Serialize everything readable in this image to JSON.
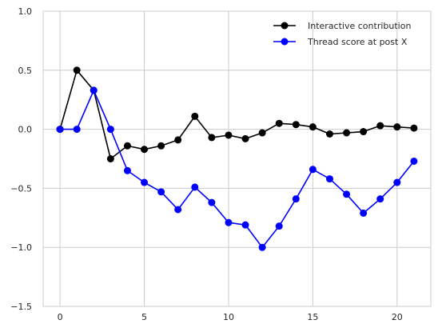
{
  "chart_data": {
    "type": "line",
    "title": "",
    "xlabel": "",
    "ylabel": "",
    "xlim": [
      -1,
      22
    ],
    "ylim": [
      -1.5,
      1.0
    ],
    "xticks": [
      0,
      5,
      10,
      15,
      20
    ],
    "xtick_labels": [
      "0",
      "5",
      "10",
      "15",
      "20"
    ],
    "yticks": [
      -1.5,
      -1.0,
      -0.5,
      0.0,
      0.5,
      1.0
    ],
    "ytick_labels": [
      "−1.5",
      "−1.0",
      "−0.5",
      "0.0",
      "0.5",
      "1.0"
    ],
    "grid": true,
    "legend_position": "top-right",
    "x": [
      0,
      1,
      2,
      3,
      4,
      5,
      6,
      7,
      8,
      9,
      10,
      11,
      12,
      13,
      14,
      15,
      16,
      17,
      18,
      19,
      20,
      21
    ],
    "series": [
      {
        "name": "Interactive contribution",
        "color": "#000000",
        "marker": "circle",
        "values": [
          0.0,
          0.5,
          0.33,
          -0.25,
          -0.14,
          -0.17,
          -0.14,
          -0.09,
          0.11,
          -0.07,
          -0.05,
          -0.08,
          -0.03,
          0.05,
          0.04,
          0.02,
          -0.04,
          -0.03,
          -0.02,
          0.03,
          0.02,
          0.01
        ]
      },
      {
        "name": "Thread score at post X",
        "color": "#0000ff",
        "marker": "circle",
        "values": [
          0.0,
          0.0,
          0.33,
          0.0,
          -0.35,
          -0.45,
          -0.53,
          -0.68,
          -0.49,
          -0.62,
          -0.79,
          -0.81,
          -1.0,
          -0.82,
          -0.59,
          -0.34,
          -0.42,
          -0.55,
          -0.71,
          -0.59,
          -0.45,
          -0.27
        ]
      }
    ]
  }
}
